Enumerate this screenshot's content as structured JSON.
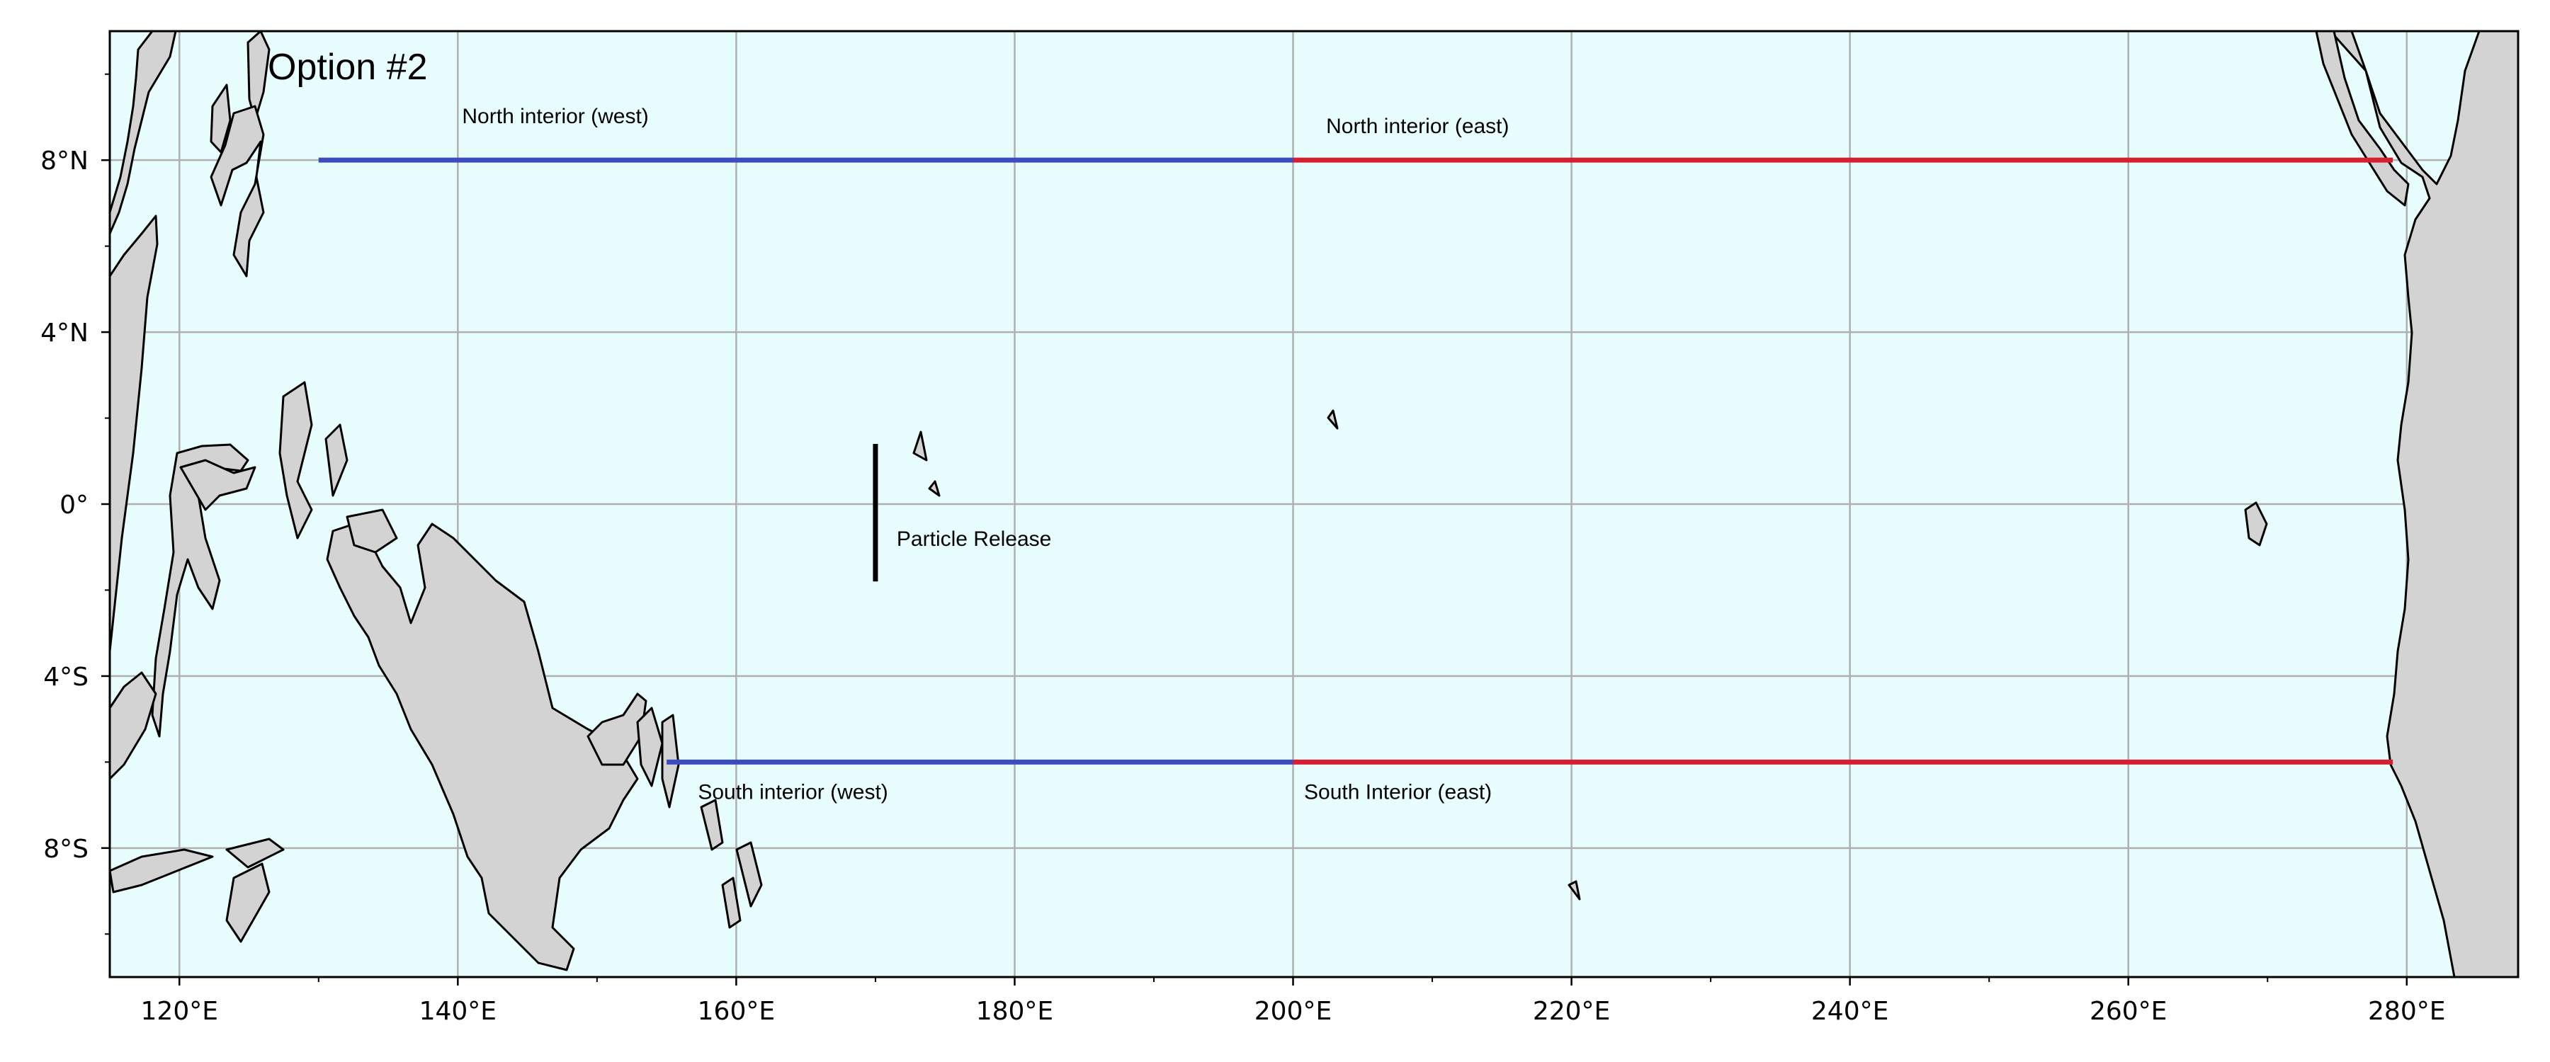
{
  "map": {
    "title": "Option #2",
    "extent": {
      "lon": [
        115,
        288
      ],
      "lat": [
        -11,
        11
      ]
    },
    "gridlines": true,
    "colors": {
      "ocean": "#e8fefe",
      "land": "#d3d3d3",
      "coast": "#000000",
      "grid": "#b0b0b0",
      "west_line": "#3b4cc0",
      "east_line": "#d62030",
      "release_line": "#000000"
    },
    "x_ticks": [
      {
        "value": 120,
        "label": "120°E"
      },
      {
        "value": 140,
        "label": "140°E"
      },
      {
        "value": 160,
        "label": "160°E"
      },
      {
        "value": 180,
        "label": "180°E"
      },
      {
        "value": 200,
        "label": "200°E"
      },
      {
        "value": 220,
        "label": "220°E"
      },
      {
        "value": 240,
        "label": "240°E"
      },
      {
        "value": 260,
        "label": "260°E"
      },
      {
        "value": 280,
        "label": "280°E"
      }
    ],
    "y_ticks": [
      {
        "value": 8,
        "label": "8°N"
      },
      {
        "value": 4,
        "label": "4°N"
      },
      {
        "value": 0,
        "label": "0°"
      },
      {
        "value": -4,
        "label": "4°S"
      },
      {
        "value": -8,
        "label": "8°S"
      }
    ],
    "lines": [
      {
        "label": "North interior (west)",
        "color": "west_line",
        "lon": [
          130,
          200
        ],
        "lat": 8
      },
      {
        "label": "North interior (east)",
        "color": "east_line",
        "lon": [
          200,
          279
        ],
        "lat": 8
      },
      {
        "label": "South interior (west)",
        "color": "west_line",
        "lon": [
          155,
          200
        ],
        "lat": -6
      },
      {
        "label": "South Interior (east)",
        "color": "east_line",
        "lon": [
          200,
          279
        ],
        "lat": -6
      },
      {
        "label": "Particle Release",
        "color": "release_line",
        "lon": 170,
        "lat": [
          -1.8,
          1.4
        ]
      }
    ]
  }
}
